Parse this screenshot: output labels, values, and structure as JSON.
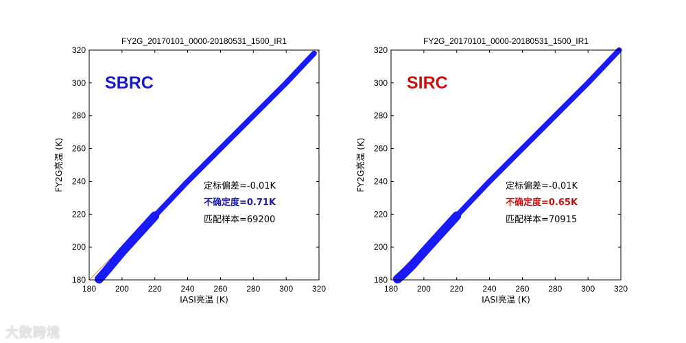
{
  "chart_data": [
    {
      "type": "scatter",
      "title": "FY2G_20170101_0000-20180531_1500_IR1",
      "xlabel": "IASI亮温 (K)",
      "ylabel": "FY2G亮温 (K)",
      "xlim": [
        180,
        320
      ],
      "ylim": [
        180,
        320
      ],
      "xticks": [
        180,
        200,
        220,
        240,
        260,
        280,
        300,
        320
      ],
      "yticks": [
        180,
        200,
        220,
        240,
        260,
        280,
        300,
        320
      ],
      "grid": false,
      "series": [
        {
          "color": "#1a1aff",
          "x": [
            186,
            190,
            195,
            200,
            210,
            220,
            240,
            260,
            280,
            300,
            317
          ],
          "y": [
            180.5,
            185,
            191,
            197,
            208,
            219,
            240,
            260,
            280,
            300,
            318
          ]
        }
      ],
      "reference_line": [
        [
          180,
          180
        ],
        [
          320,
          320
        ]
      ],
      "method": "SBRC",
      "method_color": "#1a1acd",
      "stats": [
        {
          "text": "定标偏差=-0.01K",
          "bold": false,
          "color": "#000000"
        },
        {
          "text": "不确定度=0.71K",
          "bold": true,
          "color": "#1a1aa6"
        },
        {
          "text": "匹配样本=69200",
          "bold": false,
          "color": "#000000"
        }
      ]
    },
    {
      "type": "scatter",
      "title": "FY2G_20170101_0000-20180531_1500_IR1",
      "xlabel": "IASI亮温 (K)",
      "ylabel": "FY2G亮温 (K)",
      "xlim": [
        180,
        320
      ],
      "ylim": [
        180,
        320
      ],
      "xticks": [
        180,
        200,
        220,
        240,
        260,
        280,
        300,
        320
      ],
      "yticks": [
        180,
        200,
        220,
        240,
        260,
        280,
        300,
        320
      ],
      "grid": false,
      "series": [
        {
          "color": "#1a1aff",
          "x": [
            184,
            188,
            193,
            200,
            210,
            220,
            240,
            260,
            280,
            300,
            319
          ],
          "y": [
            180.5,
            184,
            189,
            197,
            208,
            219,
            240,
            260,
            280,
            300,
            320
          ]
        }
      ],
      "reference_line": [
        [
          180,
          180
        ],
        [
          320,
          320
        ]
      ],
      "method": "SIRC",
      "method_color": "#cc1111",
      "stats": [
        {
          "text": "定标偏差=-0.01K",
          "bold": false,
          "color": "#000000"
        },
        {
          "text": "不确定度=0.65K",
          "bold": true,
          "color": "#cc1111"
        },
        {
          "text": "匹配样本=70915",
          "bold": false,
          "color": "#000000"
        }
      ]
    }
  ],
  "watermark": "大数跨境"
}
